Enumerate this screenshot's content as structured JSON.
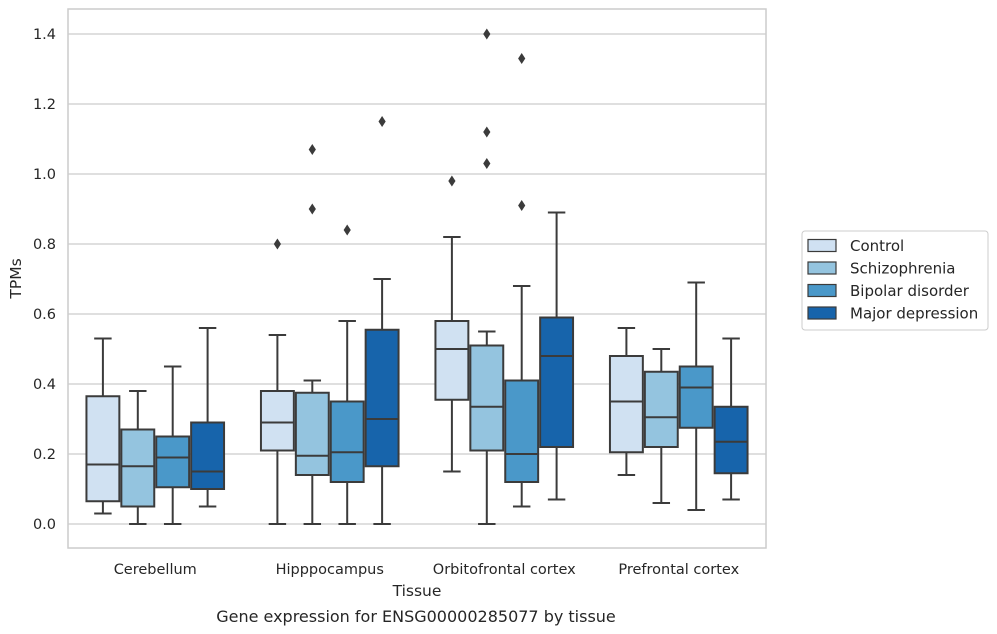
{
  "caption": "Gene expression for ENSG00000285077 by tissue",
  "chart_data": {
    "type": "box",
    "xlabel": "Tissue",
    "ylabel": "TPMs",
    "ylim": [
      -0.07,
      1.47
    ],
    "yticks": [
      0.0,
      0.2,
      0.4,
      0.6,
      0.8,
      1.0,
      1.2,
      1.4
    ],
    "ytick_labels": [
      "0.0",
      "0.2",
      "0.4",
      "0.6",
      "0.8",
      "1.0",
      "1.2",
      "1.4"
    ],
    "grid": "horizontal",
    "legend_position": "outside-right",
    "categories": [
      "Cerebellum",
      "Hipppocampus",
      "Orbitofrontal cortex",
      "Prefrontal cortex"
    ],
    "series": [
      {
        "name": "Control",
        "color": "#d0e1f2",
        "boxes": [
          {
            "whisker_low": 0.03,
            "q1": 0.065,
            "median": 0.17,
            "q3": 0.365,
            "whisker_high": 0.53,
            "outliers": []
          },
          {
            "whisker_low": 0.0,
            "q1": 0.21,
            "median": 0.29,
            "q3": 0.38,
            "whisker_high": 0.54,
            "outliers": [
              0.8
            ]
          },
          {
            "whisker_low": 0.15,
            "q1": 0.355,
            "median": 0.5,
            "q3": 0.58,
            "whisker_high": 0.82,
            "outliers": [
              0.98
            ]
          },
          {
            "whisker_low": 0.14,
            "q1": 0.205,
            "median": 0.35,
            "q3": 0.48,
            "whisker_high": 0.56,
            "outliers": []
          }
        ]
      },
      {
        "name": "Schizophrenia",
        "color": "#94c4df",
        "boxes": [
          {
            "whisker_low": 0.0,
            "q1": 0.05,
            "median": 0.165,
            "q3": 0.27,
            "whisker_high": 0.38,
            "outliers": []
          },
          {
            "whisker_low": 0.0,
            "q1": 0.14,
            "median": 0.195,
            "q3": 0.375,
            "whisker_high": 0.41,
            "outliers": [
              0.9,
              1.07
            ]
          },
          {
            "whisker_low": 0.0,
            "q1": 0.21,
            "median": 0.335,
            "q3": 0.51,
            "whisker_high": 0.55,
            "outliers": [
              1.03,
              1.12,
              1.4
            ]
          },
          {
            "whisker_low": 0.06,
            "q1": 0.22,
            "median": 0.305,
            "q3": 0.435,
            "whisker_high": 0.5,
            "outliers": []
          }
        ]
      },
      {
        "name": "Bipolar disorder",
        "color": "#4a98c9",
        "boxes": [
          {
            "whisker_low": 0.0,
            "q1": 0.105,
            "median": 0.19,
            "q3": 0.25,
            "whisker_high": 0.45,
            "outliers": []
          },
          {
            "whisker_low": 0.0,
            "q1": 0.12,
            "median": 0.205,
            "q3": 0.35,
            "whisker_high": 0.58,
            "outliers": [
              0.84
            ]
          },
          {
            "whisker_low": 0.05,
            "q1": 0.12,
            "median": 0.2,
            "q3": 0.41,
            "whisker_high": 0.68,
            "outliers": [
              0.91,
              1.33
            ]
          },
          {
            "whisker_low": 0.04,
            "q1": 0.275,
            "median": 0.39,
            "q3": 0.45,
            "whisker_high": 0.69,
            "outliers": []
          }
        ]
      },
      {
        "name": "Major depression",
        "color": "#1764ab",
        "boxes": [
          {
            "whisker_low": 0.05,
            "q1": 0.1,
            "median": 0.15,
            "q3": 0.29,
            "whisker_high": 0.56,
            "outliers": []
          },
          {
            "whisker_low": 0.0,
            "q1": 0.165,
            "median": 0.3,
            "q3": 0.555,
            "whisker_high": 0.7,
            "outliers": [
              1.15
            ]
          },
          {
            "whisker_low": 0.07,
            "q1": 0.22,
            "median": 0.48,
            "q3": 0.59,
            "whisker_high": 0.89,
            "outliers": []
          },
          {
            "whisker_low": 0.07,
            "q1": 0.145,
            "median": 0.235,
            "q3": 0.335,
            "whisker_high": 0.53,
            "outliers": []
          }
        ]
      }
    ]
  }
}
